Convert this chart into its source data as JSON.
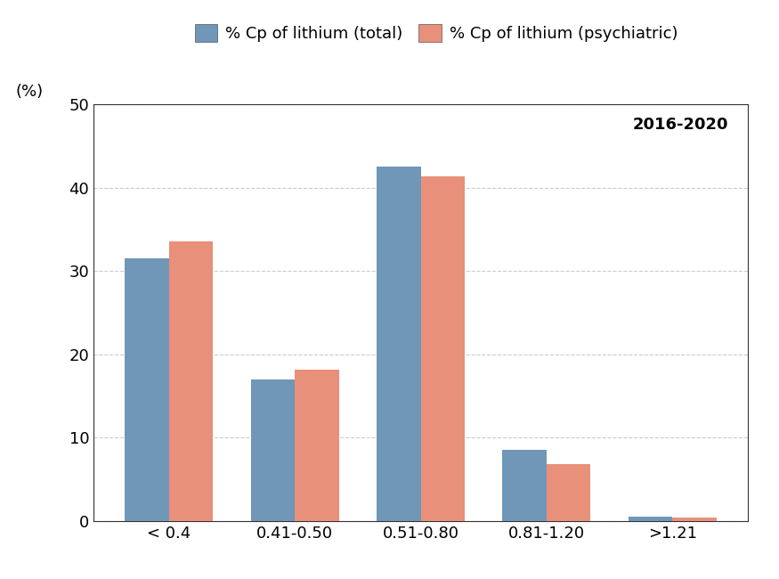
{
  "categories": [
    "< 0.4",
    "0.41-0.50",
    "0.51-0.80",
    "0.81-1.20",
    ">1.21"
  ],
  "total_values": [
    31.5,
    17.0,
    42.5,
    8.5,
    0.5
  ],
  "psychiatric_values": [
    33.5,
    18.2,
    41.3,
    6.8,
    0.4
  ],
  "color_total": "#7096B8",
  "color_psychiatric": "#E8907A",
  "legend_label_total": "% Cp of lithium (total)",
  "legend_label_psychiatric": "% Cp of lithium (psychiatric)",
  "ylabel": "(%)",
  "ylim": [
    0,
    50
  ],
  "yticks": [
    0,
    10,
    20,
    30,
    40,
    50
  ],
  "annotation": "2016-2020",
  "annotation_fontsize": 13,
  "bar_width": 0.35,
  "background_color": "#ffffff",
  "grid_color": "#cccccc",
  "tick_fontsize": 13,
  "legend_fontsize": 13,
  "spine_color": "#333333"
}
